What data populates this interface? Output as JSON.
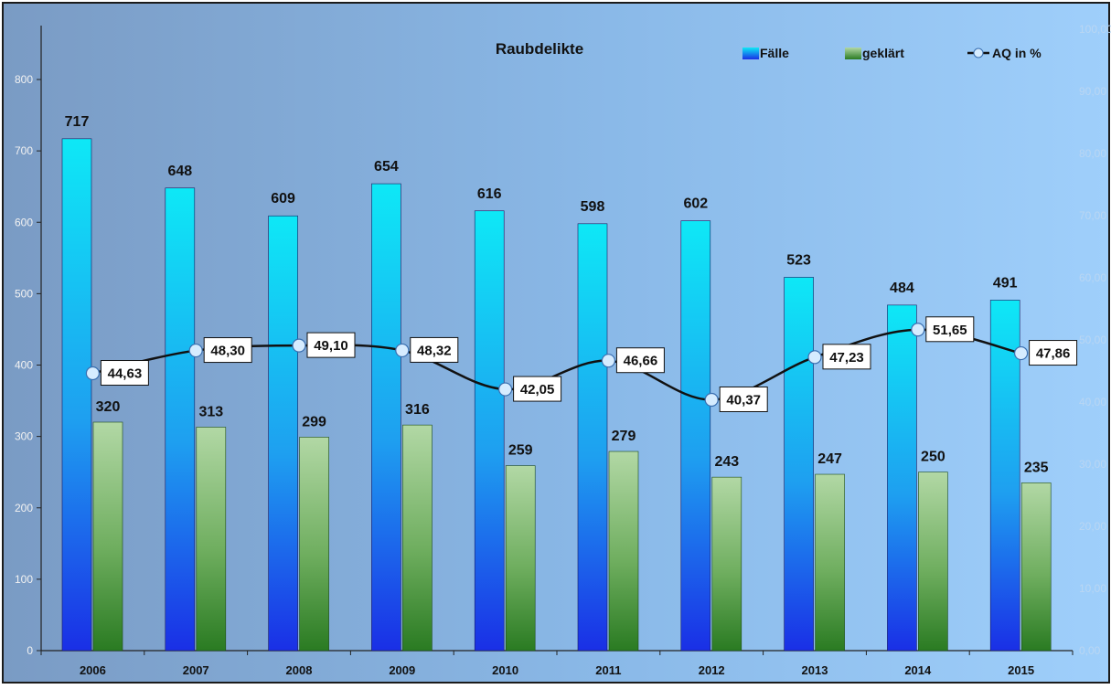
{
  "chart_data": {
    "type": "bar",
    "title": "Raubdelikte",
    "categories": [
      "2006",
      "2007",
      "2008",
      "2009",
      "2010",
      "2011",
      "2012",
      "2013",
      "2014",
      "2015"
    ],
    "series": [
      {
        "name": "Fälle",
        "kind": "bar",
        "axis": "left",
        "values": [
          717,
          648,
          609,
          654,
          616,
          598,
          602,
          523,
          484,
          491
        ]
      },
      {
        "name": "geklärt",
        "kind": "bar",
        "axis": "left",
        "values": [
          320,
          313,
          299,
          316,
          259,
          279,
          243,
          247,
          250,
          235
        ]
      },
      {
        "name": "AQ in %",
        "kind": "line",
        "axis": "right",
        "values": [
          44.63,
          48.3,
          49.1,
          48.32,
          42.05,
          46.66,
          40.37,
          47.23,
          51.65,
          47.86
        ]
      }
    ],
    "aq_labels": [
      "44,63",
      "48,30",
      "49,10",
      "48,32",
      "42,05",
      "46,66",
      "40,37",
      "47,23",
      "51,65",
      "47,86"
    ],
    "ylim_left": [
      0,
      800
    ],
    "ylim_right": [
      0,
      100
    ],
    "y_ticks_left": [
      "0",
      "100",
      "200",
      "300",
      "400",
      "500",
      "600",
      "700",
      "800"
    ],
    "y_ticks_right": [
      "0,00",
      "10,00",
      "20,00",
      "30,00",
      "40,00",
      "50,00",
      "60,00",
      "70,00",
      "80,00",
      "90,00",
      "100,00"
    ],
    "legend_position": "top-right",
    "grid": false,
    "colors": {
      "bg_left": "#7d9ec7",
      "bg_right": "#9ccdfa",
      "bar_cases_top": "#0ee8f6",
      "bar_cases_bottom": "#1a2fe6",
      "bar_cleared_top": "#b2d8a5",
      "bar_cleared_bottom": "#2a7b22",
      "line": "#111111",
      "marker": "#d6ecff"
    }
  }
}
